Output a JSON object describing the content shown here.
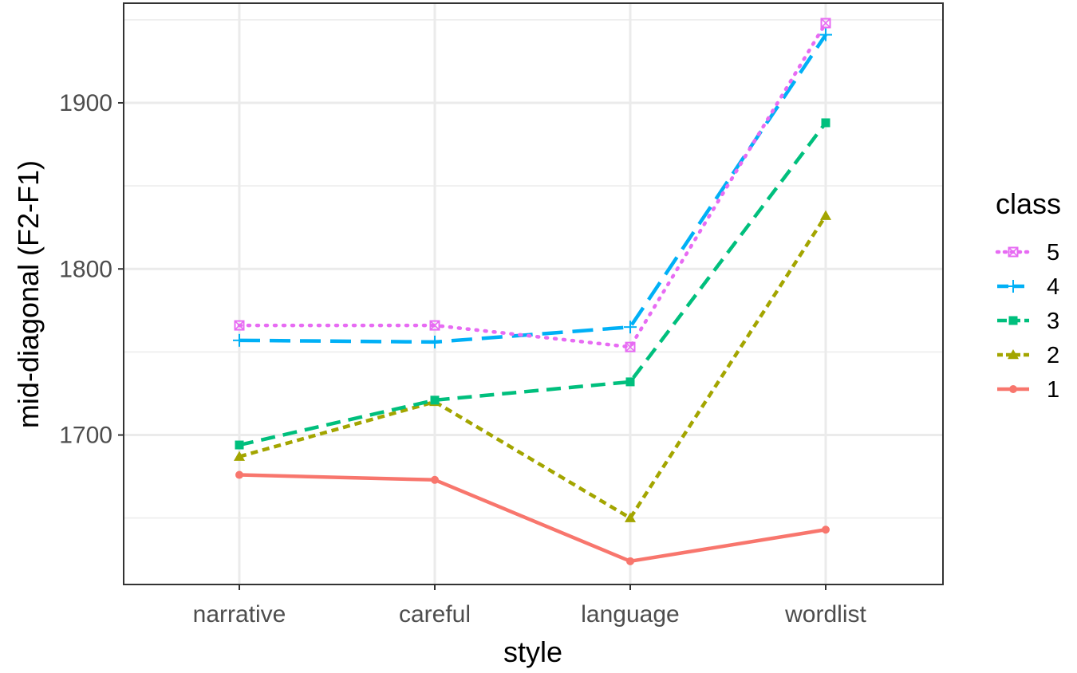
{
  "chart_data": {
    "type": "line",
    "xlabel": "style",
    "ylabel": "mid-diagonal (F2-F1)",
    "categories": [
      "narrative",
      "careful",
      "language",
      "wordlist"
    ],
    "y_ticks": [
      1700,
      1800,
      1900
    ],
    "ylim": [
      1610,
      1960
    ],
    "grid": true,
    "legend": {
      "title": "class",
      "position": "right"
    },
    "series": [
      {
        "name": "5",
        "color": "#E76BF3",
        "marker": "square-x",
        "dash": "dotted",
        "values": [
          1766,
          1766,
          1753,
          1948
        ]
      },
      {
        "name": "4",
        "color": "#00B0F6",
        "marker": "plus",
        "dash": "long-dash",
        "values": [
          1757,
          1756,
          1765,
          1941
        ]
      },
      {
        "name": "3",
        "color": "#00BF7D",
        "marker": "square",
        "dash": "dashed",
        "values": [
          1694,
          1721,
          1732,
          1888
        ]
      },
      {
        "name": "2",
        "color": "#A3A500",
        "marker": "triangle",
        "dash": "short-dash",
        "values": [
          1687,
          1720,
          1650,
          1832
        ]
      },
      {
        "name": "1",
        "color": "#F8766D",
        "marker": "circle",
        "dash": "solid",
        "values": [
          1676,
          1673,
          1624,
          1643
        ]
      }
    ]
  }
}
